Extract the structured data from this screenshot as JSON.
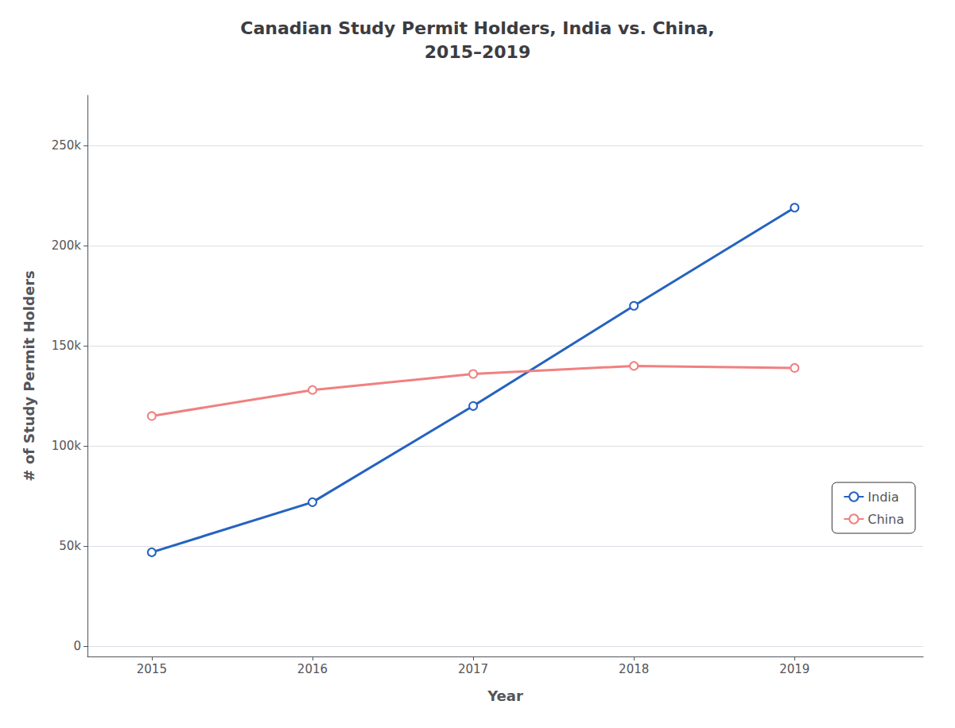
{
  "chart_data": {
    "type": "line",
    "title": "Canadian Study Permit Holders, India vs. China,\n2015–2019",
    "xlabel": "Year",
    "ylabel": "# of Study Permit Holders",
    "x": [
      2015,
      2016,
      2017,
      2018,
      2019
    ],
    "series": [
      {
        "name": "India",
        "color": "#2563C0",
        "values": [
          47000,
          72000,
          120000,
          170000,
          219000
        ]
      },
      {
        "name": "China",
        "color": "#F08080",
        "values": [
          115000,
          128000,
          136000,
          140000,
          139000
        ]
      }
    ],
    "xlim": [
      2014.6,
      2019.8
    ],
    "xticks": [
      2015,
      2016,
      2017,
      2018,
      2019
    ],
    "ylim": [
      -5000,
      275000
    ],
    "yticks": [
      0,
      {
        "value": 50000,
        "label": "50k"
      },
      {
        "value": 100000,
        "label": "100k"
      },
      {
        "value": 150000,
        "label": "150k"
      },
      {
        "value": 200000,
        "label": "200k"
      },
      {
        "value": 250000,
        "label": "250k"
      }
    ],
    "grid": true,
    "legend": "lower right",
    "marker": "circle"
  }
}
